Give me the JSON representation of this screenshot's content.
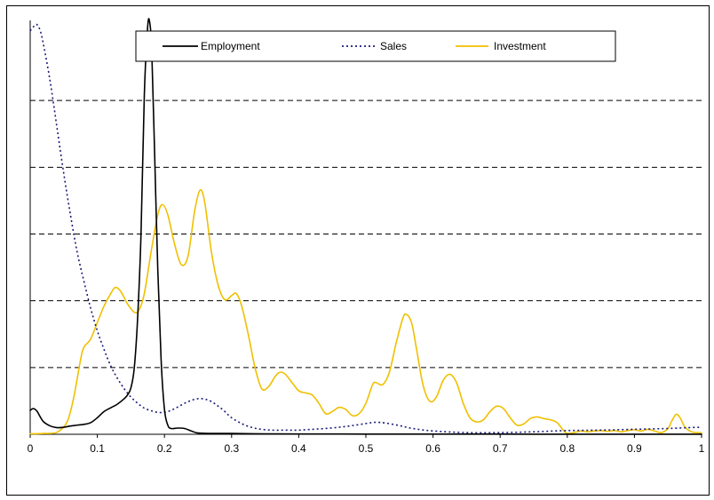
{
  "chart_data": {
    "type": "line",
    "title": "",
    "xlabel": "",
    "ylabel": "",
    "xlim": [
      0,
      1
    ],
    "ylim": [
      0,
      1
    ],
    "y_tick_labels_shown": false,
    "grid": "horizontal-dashed",
    "legend_position": "top-center",
    "x_ticks": [
      0,
      0.1,
      0.2,
      0.3,
      0.4,
      0.5,
      0.6,
      0.7,
      0.8,
      0.9,
      1
    ],
    "x_tick_labels": [
      "0",
      "0.1",
      "0.2",
      "0.3",
      "0.4",
      "0.5",
      "0.6",
      "0.7",
      "0.8",
      "0.9",
      "1"
    ],
    "y_grid": [
      0.1613,
      0.3226,
      0.4839,
      0.6452,
      0.8065
    ],
    "series": [
      {
        "name": "Employment",
        "color": "#000000",
        "dash": "solid",
        "points": [
          [
            0,
            0.058
          ],
          [
            0.005,
            0.062
          ],
          [
            0.01,
            0.056
          ],
          [
            0.015,
            0.042
          ],
          [
            0.02,
            0.03
          ],
          [
            0.03,
            0.02
          ],
          [
            0.04,
            0.016
          ],
          [
            0.05,
            0.017
          ],
          [
            0.06,
            0.02
          ],
          [
            0.07,
            0.022
          ],
          [
            0.08,
            0.024
          ],
          [
            0.09,
            0.028
          ],
          [
            0.1,
            0.04
          ],
          [
            0.11,
            0.055
          ],
          [
            0.12,
            0.064
          ],
          [
            0.13,
            0.073
          ],
          [
            0.14,
            0.086
          ],
          [
            0.145,
            0.095
          ],
          [
            0.15,
            0.112
          ],
          [
            0.155,
            0.16
          ],
          [
            0.16,
            0.28
          ],
          [
            0.165,
            0.48
          ],
          [
            0.17,
            0.82
          ],
          [
            0.175,
            0.985
          ],
          [
            0.178,
            0.995
          ],
          [
            0.181,
            0.93
          ],
          [
            0.185,
            0.7
          ],
          [
            0.19,
            0.4
          ],
          [
            0.195,
            0.18
          ],
          [
            0.2,
            0.06
          ],
          [
            0.205,
            0.022
          ],
          [
            0.21,
            0.014
          ],
          [
            0.22,
            0.015
          ],
          [
            0.23,
            0.014
          ],
          [
            0.24,
            0.008
          ],
          [
            0.25,
            0.003
          ],
          [
            0.27,
            0.002
          ],
          [
            0.3,
            0.002
          ],
          [
            0.35,
            0.001
          ],
          [
            0.4,
            0.0008
          ],
          [
            0.5,
            0.0005
          ],
          [
            0.6,
            0.0004
          ],
          [
            0.7,
            0.0003
          ],
          [
            0.8,
            0.0002
          ],
          [
            0.9,
            0.0002
          ],
          [
            1.0,
            0.0001
          ]
        ]
      },
      {
        "name": "Sales",
        "color": "#1a1a7a",
        "dash": "dotted",
        "points": [
          [
            0,
            0.975
          ],
          [
            0.005,
            0.985
          ],
          [
            0.01,
            0.99
          ],
          [
            0.015,
            0.975
          ],
          [
            0.02,
            0.94
          ],
          [
            0.03,
            0.85
          ],
          [
            0.04,
            0.74
          ],
          [
            0.05,
            0.63
          ],
          [
            0.06,
            0.53
          ],
          [
            0.07,
            0.44
          ],
          [
            0.08,
            0.37
          ],
          [
            0.09,
            0.305
          ],
          [
            0.1,
            0.25
          ],
          [
            0.11,
            0.205
          ],
          [
            0.12,
            0.165
          ],
          [
            0.13,
            0.135
          ],
          [
            0.14,
            0.11
          ],
          [
            0.15,
            0.09
          ],
          [
            0.16,
            0.075
          ],
          [
            0.17,
            0.063
          ],
          [
            0.18,
            0.057
          ],
          [
            0.19,
            0.053
          ],
          [
            0.2,
            0.053
          ],
          [
            0.21,
            0.058
          ],
          [
            0.22,
            0.066
          ],
          [
            0.23,
            0.075
          ],
          [
            0.24,
            0.082
          ],
          [
            0.25,
            0.086
          ],
          [
            0.26,
            0.085
          ],
          [
            0.27,
            0.079
          ],
          [
            0.28,
            0.068
          ],
          [
            0.29,
            0.055
          ],
          [
            0.3,
            0.04
          ],
          [
            0.32,
            0.022
          ],
          [
            0.34,
            0.013
          ],
          [
            0.36,
            0.01
          ],
          [
            0.38,
            0.01
          ],
          [
            0.4,
            0.01
          ],
          [
            0.42,
            0.012
          ],
          [
            0.44,
            0.014
          ],
          [
            0.46,
            0.017
          ],
          [
            0.48,
            0.021
          ],
          [
            0.5,
            0.026
          ],
          [
            0.515,
            0.029
          ],
          [
            0.53,
            0.027
          ],
          [
            0.55,
            0.021
          ],
          [
            0.57,
            0.014
          ],
          [
            0.6,
            0.008
          ],
          [
            0.65,
            0.004
          ],
          [
            0.7,
            0.004
          ],
          [
            0.75,
            0.006
          ],
          [
            0.8,
            0.009
          ],
          [
            0.85,
            0.01
          ],
          [
            0.9,
            0.012
          ],
          [
            0.95,
            0.014
          ],
          [
            0.98,
            0.016
          ],
          [
            1.0,
            0.017
          ]
        ]
      },
      {
        "name": "Investment",
        "color": "#f0c000",
        "dash": "solid",
        "points": [
          [
            0,
            0.001
          ],
          [
            0.02,
            0.002
          ],
          [
            0.04,
            0.005
          ],
          [
            0.055,
            0.03
          ],
          [
            0.065,
            0.09
          ],
          [
            0.075,
            0.18
          ],
          [
            0.08,
            0.21
          ],
          [
            0.09,
            0.23
          ],
          [
            0.1,
            0.27
          ],
          [
            0.11,
            0.31
          ],
          [
            0.12,
            0.34
          ],
          [
            0.127,
            0.355
          ],
          [
            0.135,
            0.345
          ],
          [
            0.145,
            0.315
          ],
          [
            0.155,
            0.295
          ],
          [
            0.162,
            0.3
          ],
          [
            0.17,
            0.34
          ],
          [
            0.18,
            0.44
          ],
          [
            0.19,
            0.53
          ],
          [
            0.197,
            0.555
          ],
          [
            0.205,
            0.53
          ],
          [
            0.215,
            0.46
          ],
          [
            0.225,
            0.41
          ],
          [
            0.235,
            0.43
          ],
          [
            0.245,
            0.54
          ],
          [
            0.253,
            0.59
          ],
          [
            0.26,
            0.56
          ],
          [
            0.27,
            0.44
          ],
          [
            0.28,
            0.36
          ],
          [
            0.29,
            0.325
          ],
          [
            0.3,
            0.335
          ],
          [
            0.307,
            0.34
          ],
          [
            0.315,
            0.31
          ],
          [
            0.325,
            0.24
          ],
          [
            0.335,
            0.16
          ],
          [
            0.345,
            0.11
          ],
          [
            0.355,
            0.115
          ],
          [
            0.365,
            0.14
          ],
          [
            0.372,
            0.15
          ],
          [
            0.38,
            0.145
          ],
          [
            0.39,
            0.125
          ],
          [
            0.4,
            0.105
          ],
          [
            0.41,
            0.1
          ],
          [
            0.42,
            0.095
          ],
          [
            0.43,
            0.075
          ],
          [
            0.44,
            0.05
          ],
          [
            0.45,
            0.055
          ],
          [
            0.46,
            0.065
          ],
          [
            0.47,
            0.06
          ],
          [
            0.48,
            0.045
          ],
          [
            0.49,
            0.05
          ],
          [
            0.5,
            0.075
          ],
          [
            0.51,
            0.12
          ],
          [
            0.515,
            0.125
          ],
          [
            0.525,
            0.12
          ],
          [
            0.535,
            0.15
          ],
          [
            0.545,
            0.22
          ],
          [
            0.555,
            0.28
          ],
          [
            0.56,
            0.29
          ],
          [
            0.568,
            0.27
          ],
          [
            0.575,
            0.21
          ],
          [
            0.585,
            0.12
          ],
          [
            0.595,
            0.08
          ],
          [
            0.605,
            0.09
          ],
          [
            0.615,
            0.13
          ],
          [
            0.625,
            0.145
          ],
          [
            0.635,
            0.125
          ],
          [
            0.645,
            0.075
          ],
          [
            0.655,
            0.04
          ],
          [
            0.665,
            0.03
          ],
          [
            0.675,
            0.035
          ],
          [
            0.685,
            0.055
          ],
          [
            0.695,
            0.068
          ],
          [
            0.705,
            0.062
          ],
          [
            0.715,
            0.04
          ],
          [
            0.725,
            0.022
          ],
          [
            0.735,
            0.025
          ],
          [
            0.745,
            0.038
          ],
          [
            0.755,
            0.042
          ],
          [
            0.765,
            0.038
          ],
          [
            0.775,
            0.035
          ],
          [
            0.785,
            0.028
          ],
          [
            0.795,
            0.008
          ],
          [
            0.8,
            0.002
          ],
          [
            0.81,
            0.004
          ],
          [
            0.82,
            0.008
          ],
          [
            0.83,
            0.006
          ],
          [
            0.84,
            0.008
          ],
          [
            0.85,
            0.009
          ],
          [
            0.86,
            0.007
          ],
          [
            0.87,
            0.009
          ],
          [
            0.88,
            0.006
          ],
          [
            0.89,
            0.009
          ],
          [
            0.9,
            0.011
          ],
          [
            0.91,
            0.008
          ],
          [
            0.92,
            0.012
          ],
          [
            0.93,
            0.008
          ],
          [
            0.94,
            0.004
          ],
          [
            0.95,
            0.014
          ],
          [
            0.955,
            0.03
          ],
          [
            0.962,
            0.048
          ],
          [
            0.968,
            0.04
          ],
          [
            0.975,
            0.018
          ],
          [
            0.985,
            0.006
          ],
          [
            0.995,
            0.004
          ],
          [
            1.0,
            0.003
          ]
        ]
      }
    ]
  }
}
